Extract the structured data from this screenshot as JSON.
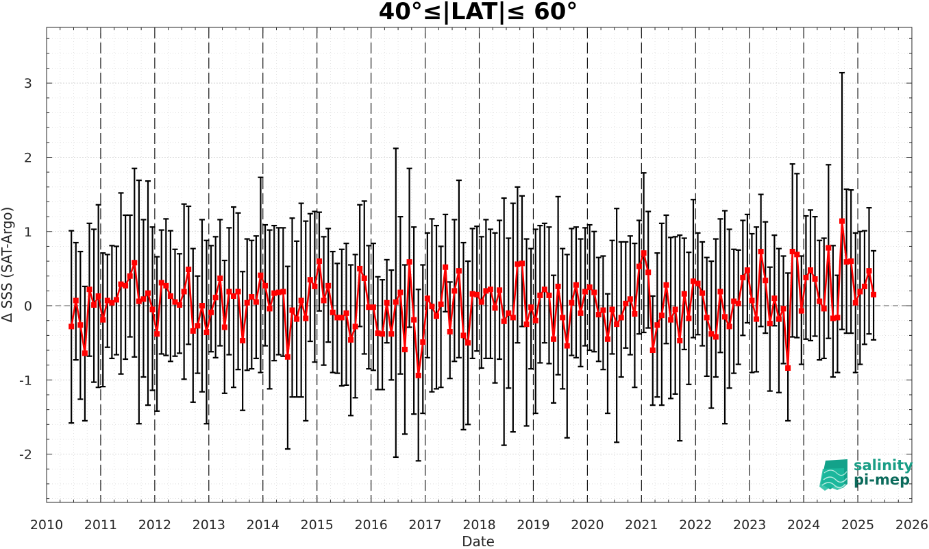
{
  "chart_data": {
    "type": "line",
    "title": "40°≤|LAT|≤ 60°",
    "xlabel": "Date",
    "ylabel": "Δ SSS (SAT-Argo)",
    "xlim": [
      2010,
      2026
    ],
    "ylim": [
      -2.65,
      3.75
    ],
    "xticks": [
      "2010",
      "2011",
      "2012",
      "2013",
      "2014",
      "2015",
      "2016",
      "2017",
      "2018",
      "2019",
      "2020",
      "2021",
      "2022",
      "2023",
      "2024",
      "2025",
      "2026"
    ],
    "yticks": [
      "-2",
      "-1",
      "0",
      "1",
      "2",
      "3"
    ],
    "ytick_values": [
      -2,
      -1,
      0,
      1,
      2,
      3
    ],
    "grid": true,
    "year_dashed_lines": true,
    "colors": {
      "series": "#ff0000",
      "errorbar": "#000000",
      "logo_text": "#1a9e86",
      "logo_text2": "#0c6b5c"
    },
    "series": [
      {
        "x": [
          "2010-06",
          "2010-07",
          "2010-08",
          "2010-09",
          "2010-10",
          "2010-11",
          "2010-12",
          "2011-01",
          "2011-02",
          "2011-03",
          "2011-04",
          "2011-05",
          "2011-06",
          "2011-07",
          "2011-08",
          "2011-09",
          "2011-10",
          "2011-11",
          "2011-12",
          "2012-01",
          "2012-02",
          "2012-03",
          "2012-04",
          "2012-05",
          "2012-06",
          "2012-07",
          "2012-08",
          "2012-09",
          "2012-10",
          "2012-11",
          "2012-12",
          "2013-01",
          "2013-02",
          "2013-03",
          "2013-04",
          "2013-05",
          "2013-06",
          "2013-07",
          "2013-08",
          "2013-09",
          "2013-10",
          "2013-11",
          "2013-12",
          "2014-01",
          "2014-02",
          "2014-03",
          "2014-04",
          "2014-05",
          "2014-06",
          "2014-07",
          "2014-08",
          "2014-09",
          "2014-10",
          "2014-11",
          "2014-12",
          "2015-01",
          "2015-02",
          "2015-03",
          "2015-04",
          "2015-05",
          "2015-06",
          "2015-07",
          "2015-08",
          "2015-09",
          "2015-10",
          "2015-11",
          "2015-12",
          "2016-01",
          "2016-02",
          "2016-03",
          "2016-04",
          "2016-05",
          "2016-06",
          "2016-07",
          "2016-08",
          "2016-09",
          "2016-10",
          "2016-11",
          "2016-12",
          "2017-01",
          "2017-02",
          "2017-03",
          "2017-04",
          "2017-05",
          "2017-06",
          "2017-07",
          "2017-08",
          "2017-09",
          "2017-10",
          "2017-11",
          "2017-12",
          "2018-01",
          "2018-02",
          "2018-03",
          "2018-04",
          "2018-05",
          "2018-06",
          "2018-07",
          "2018-08",
          "2018-09",
          "2018-10",
          "2018-11",
          "2018-12",
          "2019-01",
          "2019-02",
          "2019-03",
          "2019-04",
          "2019-05",
          "2019-06",
          "2019-07",
          "2019-08",
          "2019-09",
          "2019-10",
          "2019-11",
          "2019-12",
          "2020-01",
          "2020-02",
          "2020-03",
          "2020-04",
          "2020-05",
          "2020-06",
          "2020-07",
          "2020-08",
          "2020-09",
          "2020-10",
          "2020-11",
          "2020-12",
          "2021-01",
          "2021-02",
          "2021-03",
          "2021-04",
          "2021-05",
          "2021-06",
          "2021-07",
          "2021-08",
          "2021-09",
          "2021-10",
          "2021-11",
          "2021-12",
          "2022-01",
          "2022-02",
          "2022-03",
          "2022-04",
          "2022-05",
          "2022-06",
          "2022-07",
          "2022-08",
          "2022-09",
          "2022-10",
          "2022-11",
          "2022-12",
          "2023-01",
          "2023-02",
          "2023-03",
          "2023-04",
          "2023-05",
          "2023-06",
          "2023-07",
          "2023-08",
          "2023-09",
          "2023-10",
          "2023-11",
          "2023-12",
          "2024-01",
          "2024-02",
          "2024-03",
          "2024-04",
          "2024-05",
          "2024-06",
          "2024-07",
          "2024-08",
          "2024-09",
          "2024-10",
          "2024-11",
          "2024-12",
          "2025-01",
          "2025-02",
          "2025-03",
          "2025-04"
        ],
        "y": [
          -0.28,
          0.07,
          -0.26,
          -0.64,
          0.22,
          0.01,
          0.13,
          -0.19,
          0.07,
          0.04,
          0.08,
          0.29,
          0.27,
          0.4,
          0.58,
          0.06,
          0.09,
          0.17,
          -0.05,
          -0.38,
          0.31,
          0.27,
          0.13,
          0.05,
          0.01,
          0.19,
          0.49,
          -0.34,
          -0.27,
          0.0,
          -0.36,
          -0.09,
          0.11,
          0.37,
          -0.29,
          0.19,
          0.13,
          0.19,
          -0.47,
          0.04,
          0.12,
          0.05,
          0.41,
          0.27,
          -0.04,
          0.17,
          0.18,
          0.19,
          -0.69,
          -0.06,
          -0.18,
          0.07,
          -0.17,
          0.35,
          0.26,
          0.6,
          0.07,
          0.27,
          -0.09,
          -0.16,
          -0.16,
          -0.1,
          -0.46,
          -0.28,
          0.5,
          0.37,
          -0.02,
          -0.02,
          -0.37,
          -0.38,
          0.04,
          -0.38,
          0.05,
          0.18,
          -0.59,
          0.59,
          -0.19,
          -0.94,
          -0.49,
          0.1,
          -0.01,
          -0.14,
          0.02,
          0.52,
          -0.35,
          0.2,
          0.47,
          -0.4,
          -0.5,
          0.16,
          0.15,
          0.05,
          0.2,
          0.22,
          -0.03,
          0.21,
          -0.21,
          -0.1,
          -0.16,
          0.56,
          0.57,
          -0.25,
          -0.02,
          -0.2,
          0.14,
          0.22,
          0.14,
          -0.45,
          0.26,
          -0.16,
          -0.54,
          0.04,
          0.28,
          -0.1,
          0.19,
          0.25,
          0.18,
          -0.12,
          -0.06,
          -0.45,
          -0.05,
          -0.25,
          -0.16,
          0.03,
          0.09,
          -0.11,
          0.53,
          0.71,
          0.45,
          -0.6,
          -0.26,
          -0.13,
          0.28,
          -0.19,
          -0.05,
          -0.47,
          0.16,
          -0.17,
          0.33,
          0.3,
          0.17,
          -0.16,
          -0.38,
          -0.42,
          0.19,
          -0.15,
          -0.28,
          0.06,
          0.03,
          0.38,
          0.48,
          0.07,
          -0.18,
          0.73,
          0.34,
          -0.24,
          0.1,
          -0.18,
          -0.04,
          -0.84,
          0.73,
          0.69,
          -0.07,
          0.38,
          0.48,
          0.36,
          0.06,
          -0.04,
          0.78,
          -0.17,
          -0.16,
          1.14,
          0.59,
          0.6,
          0.04,
          0.19,
          0.26,
          0.47,
          0.15
        ],
        "ylo": [
          -1.58,
          -0.73,
          -1.26,
          -1.55,
          -0.68,
          -1.03,
          -1.1,
          -1.09,
          -0.56,
          -0.71,
          -0.66,
          -0.92,
          -0.72,
          -0.42,
          -0.69,
          -1.59,
          -0.96,
          -1.34,
          -1.14,
          -1.42,
          -0.65,
          -0.67,
          -0.75,
          -0.68,
          -0.64,
          -0.99,
          -0.52,
          -1.3,
          -0.91,
          -1.16,
          -1.59,
          -0.62,
          -0.7,
          -0.54,
          -1.18,
          -0.66,
          -1.1,
          -0.86,
          -1.41,
          -0.87,
          -0.85,
          -0.71,
          -0.9,
          -0.54,
          -1.12,
          -0.74,
          -0.66,
          -0.68,
          -1.93,
          -1.23,
          -1.23,
          -1.23,
          -1.55,
          -0.48,
          -0.76,
          -0.07,
          -0.8,
          -0.49,
          -0.9,
          -0.91,
          -1.08,
          -1.07,
          -1.48,
          -1.24,
          -0.28,
          -0.65,
          -0.85,
          -0.87,
          -1.13,
          -1.13,
          -0.5,
          -1.0,
          -2.04,
          -0.92,
          -1.73,
          -0.29,
          -1.46,
          -2.09,
          -1.45,
          -0.7,
          -1.16,
          -1.12,
          -1.1,
          -0.08,
          -0.98,
          -0.75,
          -0.7,
          -1.67,
          -1.6,
          -0.71,
          -0.61,
          -0.84,
          -0.71,
          -0.71,
          -1.04,
          -0.72,
          -1.88,
          -1.11,
          -1.7,
          -0.5,
          -0.28,
          -1.62,
          -0.85,
          -1.45,
          -0.77,
          -0.5,
          -0.78,
          -1.31,
          -0.93,
          -1.12,
          -1.78,
          -0.67,
          -0.7,
          -0.82,
          -0.54,
          -0.6,
          -0.62,
          -0.75,
          -0.86,
          -1.45,
          -0.65,
          -1.84,
          -0.96,
          -0.57,
          -0.66,
          -1.1,
          -0.38,
          -0.36,
          -0.3,
          -1.34,
          -1.23,
          -1.34,
          -0.51,
          -1.25,
          -1.19,
          -1.82,
          -0.59,
          -1.06,
          -0.43,
          -0.39,
          -0.54,
          -0.95,
          -1.38,
          -0.96,
          -0.63,
          -1.59,
          -1.11,
          -0.91,
          -0.79,
          -0.4,
          -0.23,
          -0.9,
          -0.89,
          -0.28,
          -0.37,
          -1.15,
          -0.27,
          -1.17,
          -0.78,
          -1.55,
          -0.42,
          -0.43,
          -0.79,
          -0.45,
          -0.47,
          -0.41,
          -0.73,
          -0.71,
          -0.44,
          -0.96,
          -0.9,
          -0.32,
          -0.37,
          -0.37,
          -0.9,
          -0.79,
          -0.52,
          -0.38,
          -0.46
        ],
        "yhi": [
          1.01,
          0.85,
          0.73,
          0.26,
          1.11,
          1.03,
          1.36,
          0.71,
          0.69,
          0.81,
          0.8,
          1.52,
          1.22,
          1.22,
          1.85,
          1.69,
          1.16,
          1.68,
          1.06,
          0.66,
          1.02,
          1.17,
          1.01,
          0.76,
          0.7,
          1.37,
          1.34,
          0.77,
          0.4,
          1.16,
          0.88,
          0.81,
          0.93,
          1.16,
          0.61,
          1.05,
          1.33,
          1.25,
          0.46,
          0.9,
          0.88,
          0.94,
          1.73,
          1.09,
          1.02,
          1.08,
          1.05,
          1.05,
          0.53,
          1.18,
          0.87,
          1.38,
          1.14,
          1.24,
          1.27,
          1.26,
          0.93,
          1.04,
          0.73,
          0.57,
          0.76,
          0.84,
          0.55,
          0.69,
          1.36,
          1.41,
          0.81,
          0.84,
          0.39,
          0.35,
          0.62,
          0.48,
          2.12,
          1.2,
          0.55,
          1.85,
          1.06,
          0.22,
          0.55,
          0.98,
          1.17,
          1.08,
          0.8,
          1.23,
          0.32,
          1.16,
          1.69,
          0.85,
          0.6,
          1.04,
          1.07,
          0.93,
          1.16,
          1.03,
          0.98,
          1.15,
          1.45,
          0.91,
          1.38,
          1.6,
          1.48,
          0.9,
          0.77,
          1.03,
          1.08,
          1.11,
          1.06,
          0.41,
          1.47,
          0.77,
          0.69,
          1.04,
          1.06,
          0.9,
          1.05,
          1.09,
          1.0,
          0.65,
          0.67,
          0.16,
          0.88,
          1.31,
          0.86,
          0.86,
          0.94,
          0.84,
          1.15,
          1.79,
          1.27,
          0.13,
          0.71,
          1.11,
          1.22,
          0.92,
          0.93,
          0.95,
          0.91,
          0.72,
          1.43,
          0.98,
          0.86,
          0.65,
          0.6,
          0.9,
          1.17,
          1.28,
          1.03,
          0.76,
          0.75,
          1.15,
          1.23,
          0.97,
          1.06,
          1.5,
          1.13,
          0.52,
          0.95,
          0.77,
          0.67,
          0.44,
          1.91,
          1.78,
          0.67,
          1.21,
          1.29,
          1.2,
          0.88,
          0.91,
          1.9,
          0.81,
          0.41,
          3.14,
          1.57,
          1.56,
          0.98,
          1.0,
          1.01,
          1.32,
          0.74
        ]
      }
    ]
  },
  "logo": {
    "line1": "salinity",
    "line2": "pi-mep"
  }
}
